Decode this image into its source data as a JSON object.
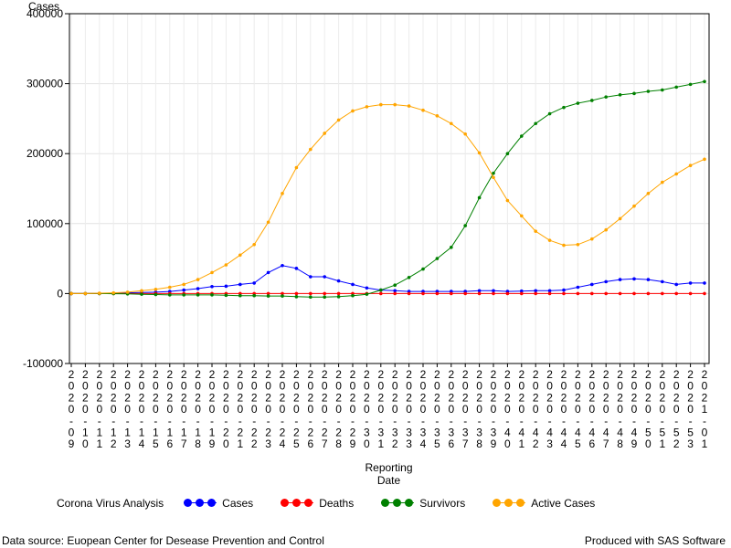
{
  "chart_data": {
    "type": "line",
    "ylabel": "Cases",
    "xlabel_lines": [
      "Reporting",
      "Date"
    ],
    "ylim": [
      -100000,
      400000
    ],
    "yticks": [
      -100000,
      0,
      100000,
      200000,
      300000,
      400000
    ],
    "ytick_labels": [
      "-100000",
      "0",
      "100000",
      "200000",
      "300000",
      "400000"
    ],
    "grid": true,
    "legend_placement": "bottom",
    "x_tick_labels": [
      "2020-09",
      "2020-10",
      "2020-11",
      "2020-12",
      "2020-13",
      "2020-14",
      "2020-15",
      "2020-16",
      "2020-17",
      "2020-18",
      "2020-19",
      "2020-20",
      "2020-21",
      "2020-22",
      "2020-23",
      "2020-24",
      "2020-25",
      "2020-26",
      "2020-27",
      "2020-28",
      "2020-29",
      "2020-30",
      "2020-31",
      "2020-32",
      "2020-33",
      "2020-34",
      "2020-35",
      "2020-36",
      "2020-37",
      "2020-38",
      "2020-39",
      "2020-40",
      "2020-41",
      "2020-42",
      "2020-43",
      "2020-44",
      "2020-45",
      "2020-46",
      "2020-47",
      "2020-48",
      "2020-49",
      "2020-50",
      "2020-51",
      "2020-52",
      "2020-53",
      "2021-01"
    ],
    "series": [
      {
        "name": "Cases",
        "color": "#0000ff",
        "values": [
          0,
          0,
          200,
          500,
          1000,
          1500,
          2000,
          3000,
          5000,
          7000,
          10000,
          10500,
          13000,
          15000,
          30000,
          40000,
          36000,
          24000,
          24000,
          18000,
          13000,
          8000,
          5000,
          4000,
          3000,
          3000,
          3000,
          3000,
          3000,
          4000,
          4000,
          3000,
          3500,
          4000,
          4000,
          5000,
          9000,
          13000,
          17000,
          20000,
          21000,
          20000,
          17000,
          13000,
          15000,
          15000
        ]
      },
      {
        "name": "Deaths",
        "color": "#ff0000",
        "values": [
          0,
          0,
          0,
          0,
          0,
          0,
          0,
          0,
          0,
          0,
          0,
          0,
          0,
          0,
          0,
          0,
          0,
          0,
          0,
          0,
          0,
          0,
          0,
          0,
          0,
          0,
          0,
          0,
          0,
          0,
          0,
          0,
          0,
          0,
          0,
          0,
          0,
          0,
          0,
          0,
          0,
          0,
          0,
          0,
          0,
          0
        ]
      },
      {
        "name": "Survivors",
        "color": "#008000",
        "values": [
          0,
          0,
          0,
          -200,
          -500,
          -1000,
          -1500,
          -2000,
          -2000,
          -2000,
          -2000,
          -2500,
          -3000,
          -3000,
          -3500,
          -3500,
          -4500,
          -5000,
          -5000,
          -4500,
          -3000,
          -1000,
          5000,
          12000,
          23000,
          35000,
          50000,
          66000,
          97000,
          137000,
          172000,
          200000,
          225000,
          243000,
          257000,
          266000,
          272000,
          276000,
          281000,
          284000,
          286000,
          289000,
          291000,
          295000,
          299000,
          303000
        ]
      },
      {
        "name": "Active Cases",
        "color": "#ffa500",
        "values": [
          0,
          0,
          500,
          1000,
          2000,
          4000,
          6000,
          9000,
          13000,
          20000,
          30000,
          41000,
          55000,
          70000,
          102000,
          143000,
          180000,
          206000,
          229000,
          248000,
          261000,
          267000,
          270000,
          270000,
          268000,
          262000,
          254000,
          243000,
          228000,
          201000,
          166000,
          133000,
          111000,
          89000,
          76000,
          69000,
          70000,
          78000,
          91000,
          107000,
          125000,
          143000,
          159000,
          171000,
          183000,
          192000
        ]
      }
    ]
  },
  "legend": {
    "title": "Corona Virus Analysis",
    "items": [
      {
        "label": "Cases",
        "color": "#0000ff"
      },
      {
        "label": "Deaths",
        "color": "#ff0000"
      },
      {
        "label": "Survivors",
        "color": "#008000"
      },
      {
        "label": "Active Cases",
        "color": "#ffa500"
      }
    ]
  },
  "footer": {
    "left": "Data source: Euopean Center for Desease Prevention and Control",
    "right": "Produced with SAS Software"
  }
}
